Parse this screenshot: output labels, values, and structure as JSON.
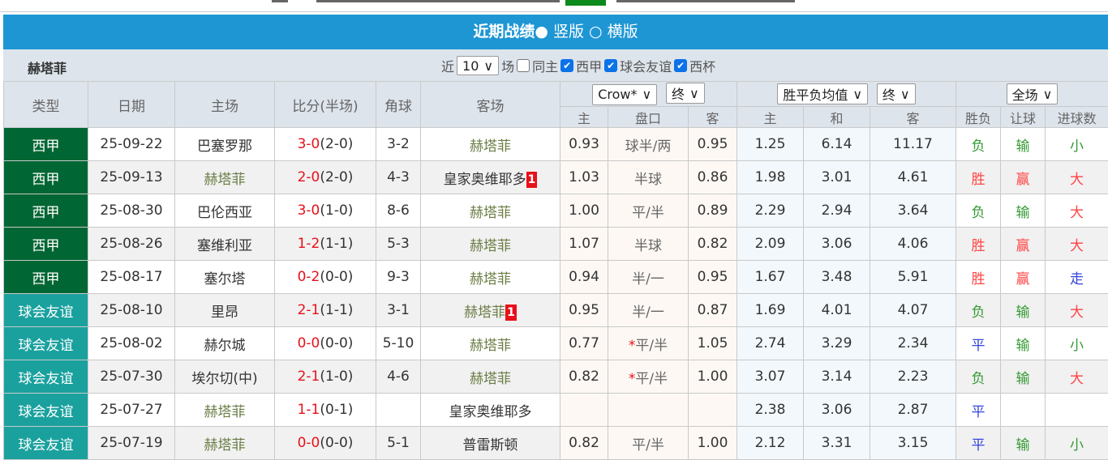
{
  "header": {
    "title": "近期战绩",
    "option_vertical": "竖版",
    "option_horizontal": "横版"
  },
  "filter": {
    "team": "赫塔菲",
    "recent_label": "近",
    "count": "10",
    "games_label": "场",
    "same_home": "同主",
    "same_home_checked": false,
    "leagues": [
      {
        "label": "西甲",
        "checked": true
      },
      {
        "label": "球会友谊",
        "checked": true
      },
      {
        "label": "西杯",
        "checked": true
      }
    ]
  },
  "columns": {
    "type": "类型",
    "date": "日期",
    "home": "主场",
    "score": "比分(半场)",
    "corner": "角球",
    "away": "客场",
    "company_select": "Crow*",
    "odds_select": "终",
    "avg_select": "胜平负均值",
    "avg_odds_select": "终",
    "period_select": "全场",
    "sub": [
      "主",
      "盘口",
      "客",
      "主",
      "和",
      "客",
      "胜负",
      "让球",
      "进球数"
    ]
  },
  "colors": {
    "header": "#1e96d4",
    "liga": "#006633",
    "friendly": "#1aa19e",
    "highlight_team": "#6b7d45",
    "win": "#ff4444",
    "lose": "#339933",
    "draw": "#3344dd"
  },
  "rows": [
    {
      "type": "西甲",
      "kind": "liga",
      "date": "25-09-22",
      "home": "巴塞罗那",
      "ft": "3-0",
      "ht": "(2-0)",
      "corner": "3-2",
      "away": "赫塔菲",
      "away_badge": "",
      "hl": "away",
      "ah_home": "0.93",
      "ah_line": "球半/两",
      "ah_away": "0.95",
      "eu_home": "1.25",
      "eu_draw": "6.14",
      "eu_away": "11.17",
      "result": "负",
      "handicap": "输",
      "ou": "小"
    },
    {
      "type": "西甲",
      "kind": "liga",
      "date": "25-09-13",
      "home": "赫塔菲",
      "ft": "2-0",
      "ht": "(2-0)",
      "corner": "4-3",
      "away": "皇家奥维耶多",
      "away_badge": "1",
      "hl": "home",
      "ah_home": "1.03",
      "ah_line": "半球",
      "ah_away": "0.86",
      "eu_home": "1.98",
      "eu_draw": "3.01",
      "eu_away": "4.61",
      "result": "胜",
      "handicap": "赢",
      "ou": "大"
    },
    {
      "type": "西甲",
      "kind": "liga",
      "date": "25-08-30",
      "home": "巴伦西亚",
      "ft": "3-0",
      "ht": "(1-0)",
      "corner": "8-6",
      "away": "赫塔菲",
      "away_badge": "",
      "hl": "away",
      "ah_home": "1.00",
      "ah_line": "平/半",
      "ah_away": "0.89",
      "eu_home": "2.29",
      "eu_draw": "2.94",
      "eu_away": "3.64",
      "result": "负",
      "handicap": "输",
      "ou": "大"
    },
    {
      "type": "西甲",
      "kind": "liga",
      "date": "25-08-26",
      "home": "塞维利亚",
      "ft": "1-2",
      "ht": "(1-1)",
      "corner": "5-3",
      "away": "赫塔菲",
      "away_badge": "",
      "hl": "away",
      "ah_home": "1.07",
      "ah_line": "半球",
      "ah_away": "0.82",
      "eu_home": "2.09",
      "eu_draw": "3.06",
      "eu_away": "4.06",
      "result": "胜",
      "handicap": "赢",
      "ou": "大"
    },
    {
      "type": "西甲",
      "kind": "liga",
      "date": "25-08-17",
      "home": "塞尔塔",
      "ft": "0-2",
      "ht": "(0-0)",
      "corner": "9-3",
      "away": "赫塔菲",
      "away_badge": "",
      "hl": "away",
      "ah_home": "0.94",
      "ah_line": "半/一",
      "ah_away": "0.95",
      "eu_home": "1.67",
      "eu_draw": "3.48",
      "eu_away": "5.91",
      "result": "胜",
      "handicap": "赢",
      "ou": "走"
    },
    {
      "type": "球会友谊",
      "kind": "fr",
      "date": "25-08-10",
      "home": "里昂",
      "ft": "2-1",
      "ht": "(1-1)",
      "corner": "3-1",
      "away": "赫塔菲",
      "away_badge": "1",
      "hl": "away",
      "ah_home": "0.95",
      "ah_line": "半/一",
      "ah_away": "0.87",
      "eu_home": "1.69",
      "eu_draw": "4.01",
      "eu_away": "4.07",
      "result": "负",
      "handicap": "输",
      "ou": "大"
    },
    {
      "type": "球会友谊",
      "kind": "fr",
      "date": "25-08-02",
      "home": "赫尔城",
      "ft": "0-0",
      "ht": "(0-0)",
      "corner": "5-10",
      "away": "赫塔菲",
      "away_badge": "",
      "hl": "away",
      "ah_home": "0.77",
      "ah_star": "*",
      "ah_line": "平/半",
      "ah_away": "1.05",
      "eu_home": "2.74",
      "eu_draw": "3.29",
      "eu_away": "2.34",
      "result": "平",
      "handicap": "输",
      "ou": "小"
    },
    {
      "type": "球会友谊",
      "kind": "fr",
      "date": "25-07-30",
      "home": "埃尔切(中)",
      "ft": "2-1",
      "ht": "(1-0)",
      "corner": "4-6",
      "away": "赫塔菲",
      "away_badge": "",
      "hl": "away",
      "ah_home": "0.82",
      "ah_star": "*",
      "ah_line": "平/半",
      "ah_away": "1.00",
      "eu_home": "3.07",
      "eu_draw": "3.14",
      "eu_away": "2.23",
      "result": "负",
      "handicap": "输",
      "ou": "大"
    },
    {
      "type": "球会友谊",
      "kind": "fr",
      "date": "25-07-27",
      "home": "赫塔菲",
      "ft": "1-1",
      "ht": "(0-1)",
      "corner": "",
      "away": "皇家奥维耶多",
      "away_badge": "",
      "hl": "home",
      "ah_home": "",
      "ah_line": "",
      "ah_away": "",
      "eu_home": "2.38",
      "eu_draw": "3.06",
      "eu_away": "2.87",
      "result": "平",
      "handicap": "",
      "ou": ""
    },
    {
      "type": "球会友谊",
      "kind": "fr",
      "date": "25-07-19",
      "home": "赫塔菲",
      "ft": "0-0",
      "ht": "(0-0)",
      "corner": "5-1",
      "away": "普雷斯顿",
      "away_badge": "",
      "hl": "home",
      "ah_home": "0.82",
      "ah_line": "平/半",
      "ah_away": "1.00",
      "eu_home": "2.12",
      "eu_draw": "3.31",
      "eu_away": "3.15",
      "result": "平",
      "handicap": "输",
      "ou": "小"
    }
  ]
}
